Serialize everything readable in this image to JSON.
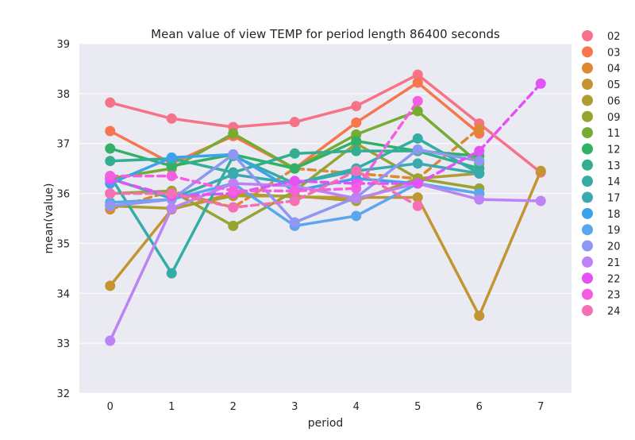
{
  "chart_data": {
    "type": "line",
    "title": "Mean value of view TEMP for period length 86400 seconds",
    "xlabel": "period",
    "ylabel": "mean(value)",
    "x": [
      0,
      1,
      2,
      3,
      4,
      5,
      6,
      7
    ],
    "xlim": [
      -0.5,
      7.5
    ],
    "ylim": [
      32,
      39
    ],
    "yticks": [
      32,
      33,
      34,
      35,
      36,
      37,
      38,
      39
    ],
    "grid": true,
    "legend_position": "right",
    "background": "#eaeaf2",
    "series": [
      {
        "name": "02",
        "color": "#f77189",
        "dashed": false,
        "values": [
          37.82,
          37.5,
          37.33,
          37.43,
          37.75,
          38.38,
          37.4,
          36.42
        ]
      },
      {
        "name": "03",
        "color": "#f7754f",
        "dashed": false,
        "values": [
          37.25,
          36.6,
          37.15,
          36.5,
          37.42,
          38.22,
          37.2,
          null
        ]
      },
      {
        "name": "04",
        "color": "#dc8932",
        "dashed": true,
        "values": [
          35.68,
          36.05,
          35.72,
          36.5,
          36.4,
          36.3,
          37.3,
          null
        ]
      },
      {
        "name": "05",
        "color": "#c39532",
        "dashed": false,
        "values": [
          34.15,
          35.68,
          36.0,
          35.93,
          35.92,
          35.92,
          33.55,
          36.45
        ]
      },
      {
        "name": "06",
        "color": "#ae9d31",
        "dashed": false,
        "values": [
          35.75,
          35.7,
          35.95,
          35.95,
          35.85,
          36.3,
          36.4,
          null
        ]
      },
      {
        "name": "09",
        "color": "#97a431",
        "dashed": false,
        "values": [
          36.0,
          36.05,
          35.35,
          36.05,
          37.0,
          36.3,
          36.1,
          null
        ]
      },
      {
        "name": "11",
        "color": "#77ab31",
        "dashed": false,
        "values": [
          36.3,
          36.5,
          37.2,
          36.5,
          37.18,
          37.65,
          36.6,
          null
        ]
      },
      {
        "name": "12",
        "color": "#32b166",
        "dashed": false,
        "values": [
          36.9,
          36.55,
          36.78,
          36.5,
          37.05,
          36.85,
          36.75,
          null
        ]
      },
      {
        "name": "13",
        "color": "#34ae91",
        "dashed": false,
        "values": [
          36.65,
          36.7,
          36.42,
          36.8,
          36.85,
          36.85,
          36.5,
          null
        ]
      },
      {
        "name": "14",
        "color": "#36ada4",
        "dashed": false,
        "values": [
          36.35,
          34.4,
          36.75,
          36.2,
          36.5,
          37.1,
          36.4,
          null
        ]
      },
      {
        "name": "17",
        "color": "#38aab0",
        "dashed": false,
        "values": [
          36.3,
          35.9,
          36.38,
          36.2,
          36.45,
          36.6,
          36.4,
          null
        ]
      },
      {
        "name": "18",
        "color": "#3ba3ec",
        "dashed": false,
        "values": [
          36.2,
          36.72,
          36.78,
          36.05,
          36.3,
          36.2,
          36.0,
          null
        ]
      },
      {
        "name": "19",
        "color": "#5aa7ed",
        "dashed": false,
        "values": [
          35.82,
          35.88,
          36.2,
          35.35,
          35.55,
          36.2,
          36.0,
          null
        ]
      },
      {
        "name": "20",
        "color": "#8e97f2",
        "dashed": false,
        "values": [
          35.75,
          35.88,
          36.78,
          35.42,
          35.92,
          36.88,
          36.65,
          null
        ]
      },
      {
        "name": "21",
        "color": "#bb83f4",
        "dashed": false,
        "values": [
          33.05,
          35.7,
          36.2,
          36.15,
          35.9,
          36.2,
          35.88,
          35.85
        ]
      },
      {
        "name": "22",
        "color": "#e352f5",
        "dashed": true,
        "values": [
          36.28,
          35.95,
          36.0,
          36.25,
          36.2,
          36.2,
          36.85,
          38.2
        ]
      },
      {
        "name": "23",
        "color": "#f45ee0",
        "dashed": true,
        "values": [
          36.35,
          36.35,
          36.05,
          36.05,
          36.1,
          37.85,
          null,
          null
        ]
      },
      {
        "name": "24",
        "color": "#f46fb4",
        "dashed": true,
        "values": [
          36.0,
          36.0,
          35.72,
          35.85,
          36.45,
          35.75,
          null,
          null
        ]
      }
    ]
  }
}
